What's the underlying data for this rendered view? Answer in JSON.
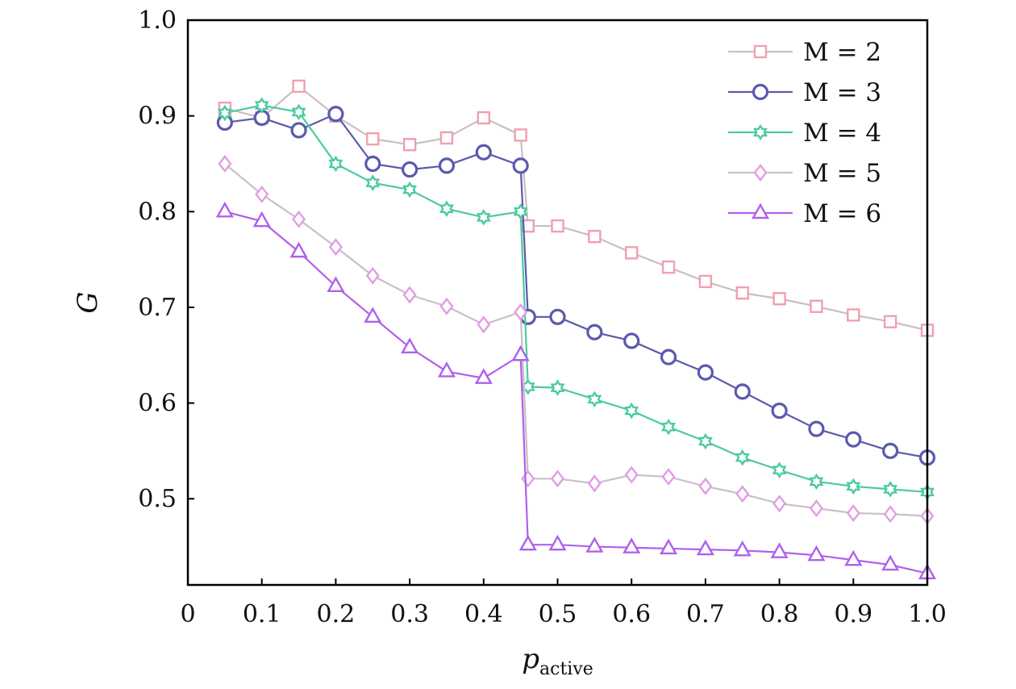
{
  "chart_data": {
    "type": "line",
    "xlabel": "p",
    "xlabel_subscript": "active",
    "ylabel": "G",
    "xlim": [
      0,
      1.0
    ],
    "ylim": [
      0.41,
      1.0
    ],
    "xticks": [
      0,
      0.1,
      0.2,
      0.3,
      0.4,
      0.5,
      0.6,
      0.7,
      0.8,
      0.9,
      1.0
    ],
    "xtick_labels": [
      "0",
      "0.1",
      "0.2",
      "0.3",
      "0.4",
      "0.5",
      "0.6",
      "0.7",
      "0.8",
      "0.9",
      "1.0"
    ],
    "yticks": [
      0.5,
      0.6,
      0.7,
      0.8,
      0.9,
      1.0
    ],
    "ytick_labels": [
      "0.5",
      "0.6",
      "0.7",
      "0.8",
      "0.9",
      "1.0"
    ],
    "grid": false,
    "legend_position": "top-right",
    "x": [
      0.05,
      0.1,
      0.15,
      0.2,
      0.25,
      0.3,
      0.35,
      0.4,
      0.45,
      0.46,
      0.5,
      0.55,
      0.6,
      0.65,
      0.7,
      0.75,
      0.8,
      0.85,
      0.9,
      0.95,
      1.0
    ],
    "series": [
      {
        "name": "M = 2",
        "color": "#f0a0b0",
        "line_color": "#c8c0c0",
        "marker": "square",
        "values": [
          0.908,
          0.898,
          0.931,
          0.9,
          0.876,
          0.87,
          0.877,
          0.898,
          0.88,
          0.785,
          0.785,
          0.774,
          0.757,
          0.742,
          0.727,
          0.715,
          0.709,
          0.701,
          0.692,
          0.685,
          0.676
        ]
      },
      {
        "name": "M = 3",
        "color": "#5a5aae",
        "line_color": "#5a5aae",
        "marker": "circle",
        "values": [
          0.893,
          0.898,
          0.885,
          0.902,
          0.85,
          0.844,
          0.848,
          0.862,
          0.848,
          0.69,
          0.69,
          0.674,
          0.665,
          0.648,
          0.632,
          0.612,
          0.592,
          0.573,
          0.562,
          0.55,
          0.543
        ]
      },
      {
        "name": "M = 4",
        "color": "#4ccaa0",
        "line_color": "#4ccaa0",
        "marker": "star",
        "values": [
          0.903,
          0.911,
          0.904,
          0.85,
          0.83,
          0.823,
          0.803,
          0.794,
          0.8,
          0.617,
          0.616,
          0.604,
          0.592,
          0.575,
          0.56,
          0.543,
          0.53,
          0.518,
          0.513,
          0.51,
          0.507
        ]
      },
      {
        "name": "M = 5",
        "color": "#e29ce6",
        "line_color": "#c8c0c8",
        "marker": "diamond",
        "values": [
          0.85,
          0.818,
          0.792,
          0.763,
          0.733,
          0.713,
          0.701,
          0.682,
          0.695,
          0.521,
          0.521,
          0.516,
          0.525,
          0.523,
          0.513,
          0.505,
          0.495,
          0.49,
          0.485,
          0.484,
          0.482
        ]
      },
      {
        "name": "M = 6",
        "color": "#b060ec",
        "line_color": "#b060ec",
        "marker": "triangle",
        "values": [
          0.8,
          0.79,
          0.758,
          0.722,
          0.69,
          0.658,
          0.633,
          0.626,
          0.65,
          0.452,
          0.452,
          0.45,
          0.449,
          0.448,
          0.447,
          0.446,
          0.444,
          0.441,
          0.436,
          0.431,
          0.422
        ]
      }
    ]
  }
}
